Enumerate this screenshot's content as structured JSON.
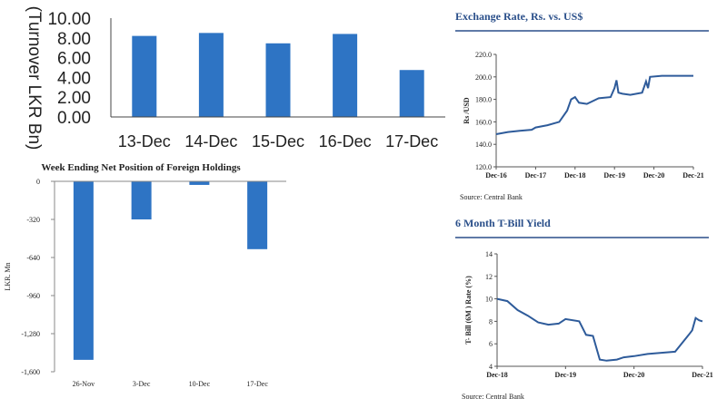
{
  "chart_data": [
    {
      "type": "bar",
      "title": "",
      "ylabel": "(Turnover LKR Bn)",
      "xlabel": "",
      "categories": [
        "13-Dec",
        "14-Dec",
        "15-Dec",
        "16-Dec",
        "17-Dec"
      ],
      "values": [
        8.2,
        8.5,
        7.45,
        8.4,
        4.75
      ],
      "ylim": [
        0,
        10
      ],
      "yticks": [
        "0.00",
        "2.00",
        "4.00",
        "6.00",
        "8.00",
        "10.00"
      ],
      "color": "#2e74c4"
    },
    {
      "type": "bar",
      "title": "Week Ending Net Position of Foreign Holdings",
      "ylabel": "LKR. Mn",
      "xlabel": "",
      "categories": [
        "26-Nov",
        "3-Dec",
        "10-Dec",
        "17-Dec"
      ],
      "values": [
        -1500,
        -320,
        -30,
        -570
      ],
      "ylim": [
        -1600,
        0
      ],
      "yticks": [
        "0",
        "-320",
        "-640",
        "-960",
        "-1,280",
        "-1,600"
      ],
      "color": "#2e74c4"
    },
    {
      "type": "line",
      "title": "Exchange Rate, Rs. vs. US$",
      "ylabel": "Rs /USD",
      "xlabel": "",
      "xticks": [
        "Dec-16",
        "Dec-17",
        "Dec-18",
        "Dec-19",
        "Dec-20",
        "Dec-21"
      ],
      "yticks": [
        "120.0",
        "140.0",
        "160.0",
        "180.0",
        "200.0",
        "220.0"
      ],
      "ylim": [
        120,
        220
      ],
      "x": [
        0,
        0.3,
        0.6,
        0.9,
        1.0,
        1.3,
        1.6,
        1.8,
        1.9,
        2.0,
        2.1,
        2.3,
        2.6,
        2.9,
        3.0,
        3.05,
        3.1,
        3.2,
        3.4,
        3.7,
        3.8,
        3.85,
        3.9,
        4.2,
        4.5,
        4.8,
        5.0
      ],
      "series": [
        {
          "name": "Rs/USD",
          "values": [
            149,
            151,
            152,
            153,
            155,
            157,
            160,
            170,
            180,
            182,
            177,
            176,
            181,
            182,
            190,
            197,
            186,
            185,
            184,
            186,
            196,
            190,
            200,
            201,
            201,
            201,
            201
          ],
          "color": "#2e5b9a"
        }
      ],
      "source": "Source: Central Bank"
    },
    {
      "type": "line",
      "title": "6 Month T-Bill Yield",
      "ylabel": "T- Bill (6M ) Rate (%)",
      "xlabel": "",
      "xticks": [
        "Dec-18",
        "Dec-19",
        "Dec-20",
        "Dec-21"
      ],
      "yticks": [
        "4",
        "6",
        "8",
        "10",
        "12",
        "14"
      ],
      "ylim": [
        4,
        14
      ],
      "x": [
        0,
        0.15,
        0.3,
        0.45,
        0.6,
        0.75,
        0.9,
        1.0,
        1.2,
        1.3,
        1.4,
        1.5,
        1.6,
        1.75,
        1.85,
        2.0,
        2.2,
        2.4,
        2.6,
        2.8,
        2.85,
        2.9,
        2.95,
        3.0
      ],
      "series": [
        {
          "name": "6M T-Bill",
          "values": [
            10,
            9.8,
            9.0,
            8.5,
            7.9,
            7.7,
            7.8,
            8.2,
            8.0,
            6.8,
            6.7,
            4.6,
            4.5,
            4.6,
            4.8,
            4.9,
            5.1,
            5.2,
            5.3,
            6.8,
            7.2,
            8.3,
            8.1,
            8.0
          ],
          "color": "#2e5b9a"
        }
      ],
      "source": "Source: Central Bank"
    }
  ]
}
